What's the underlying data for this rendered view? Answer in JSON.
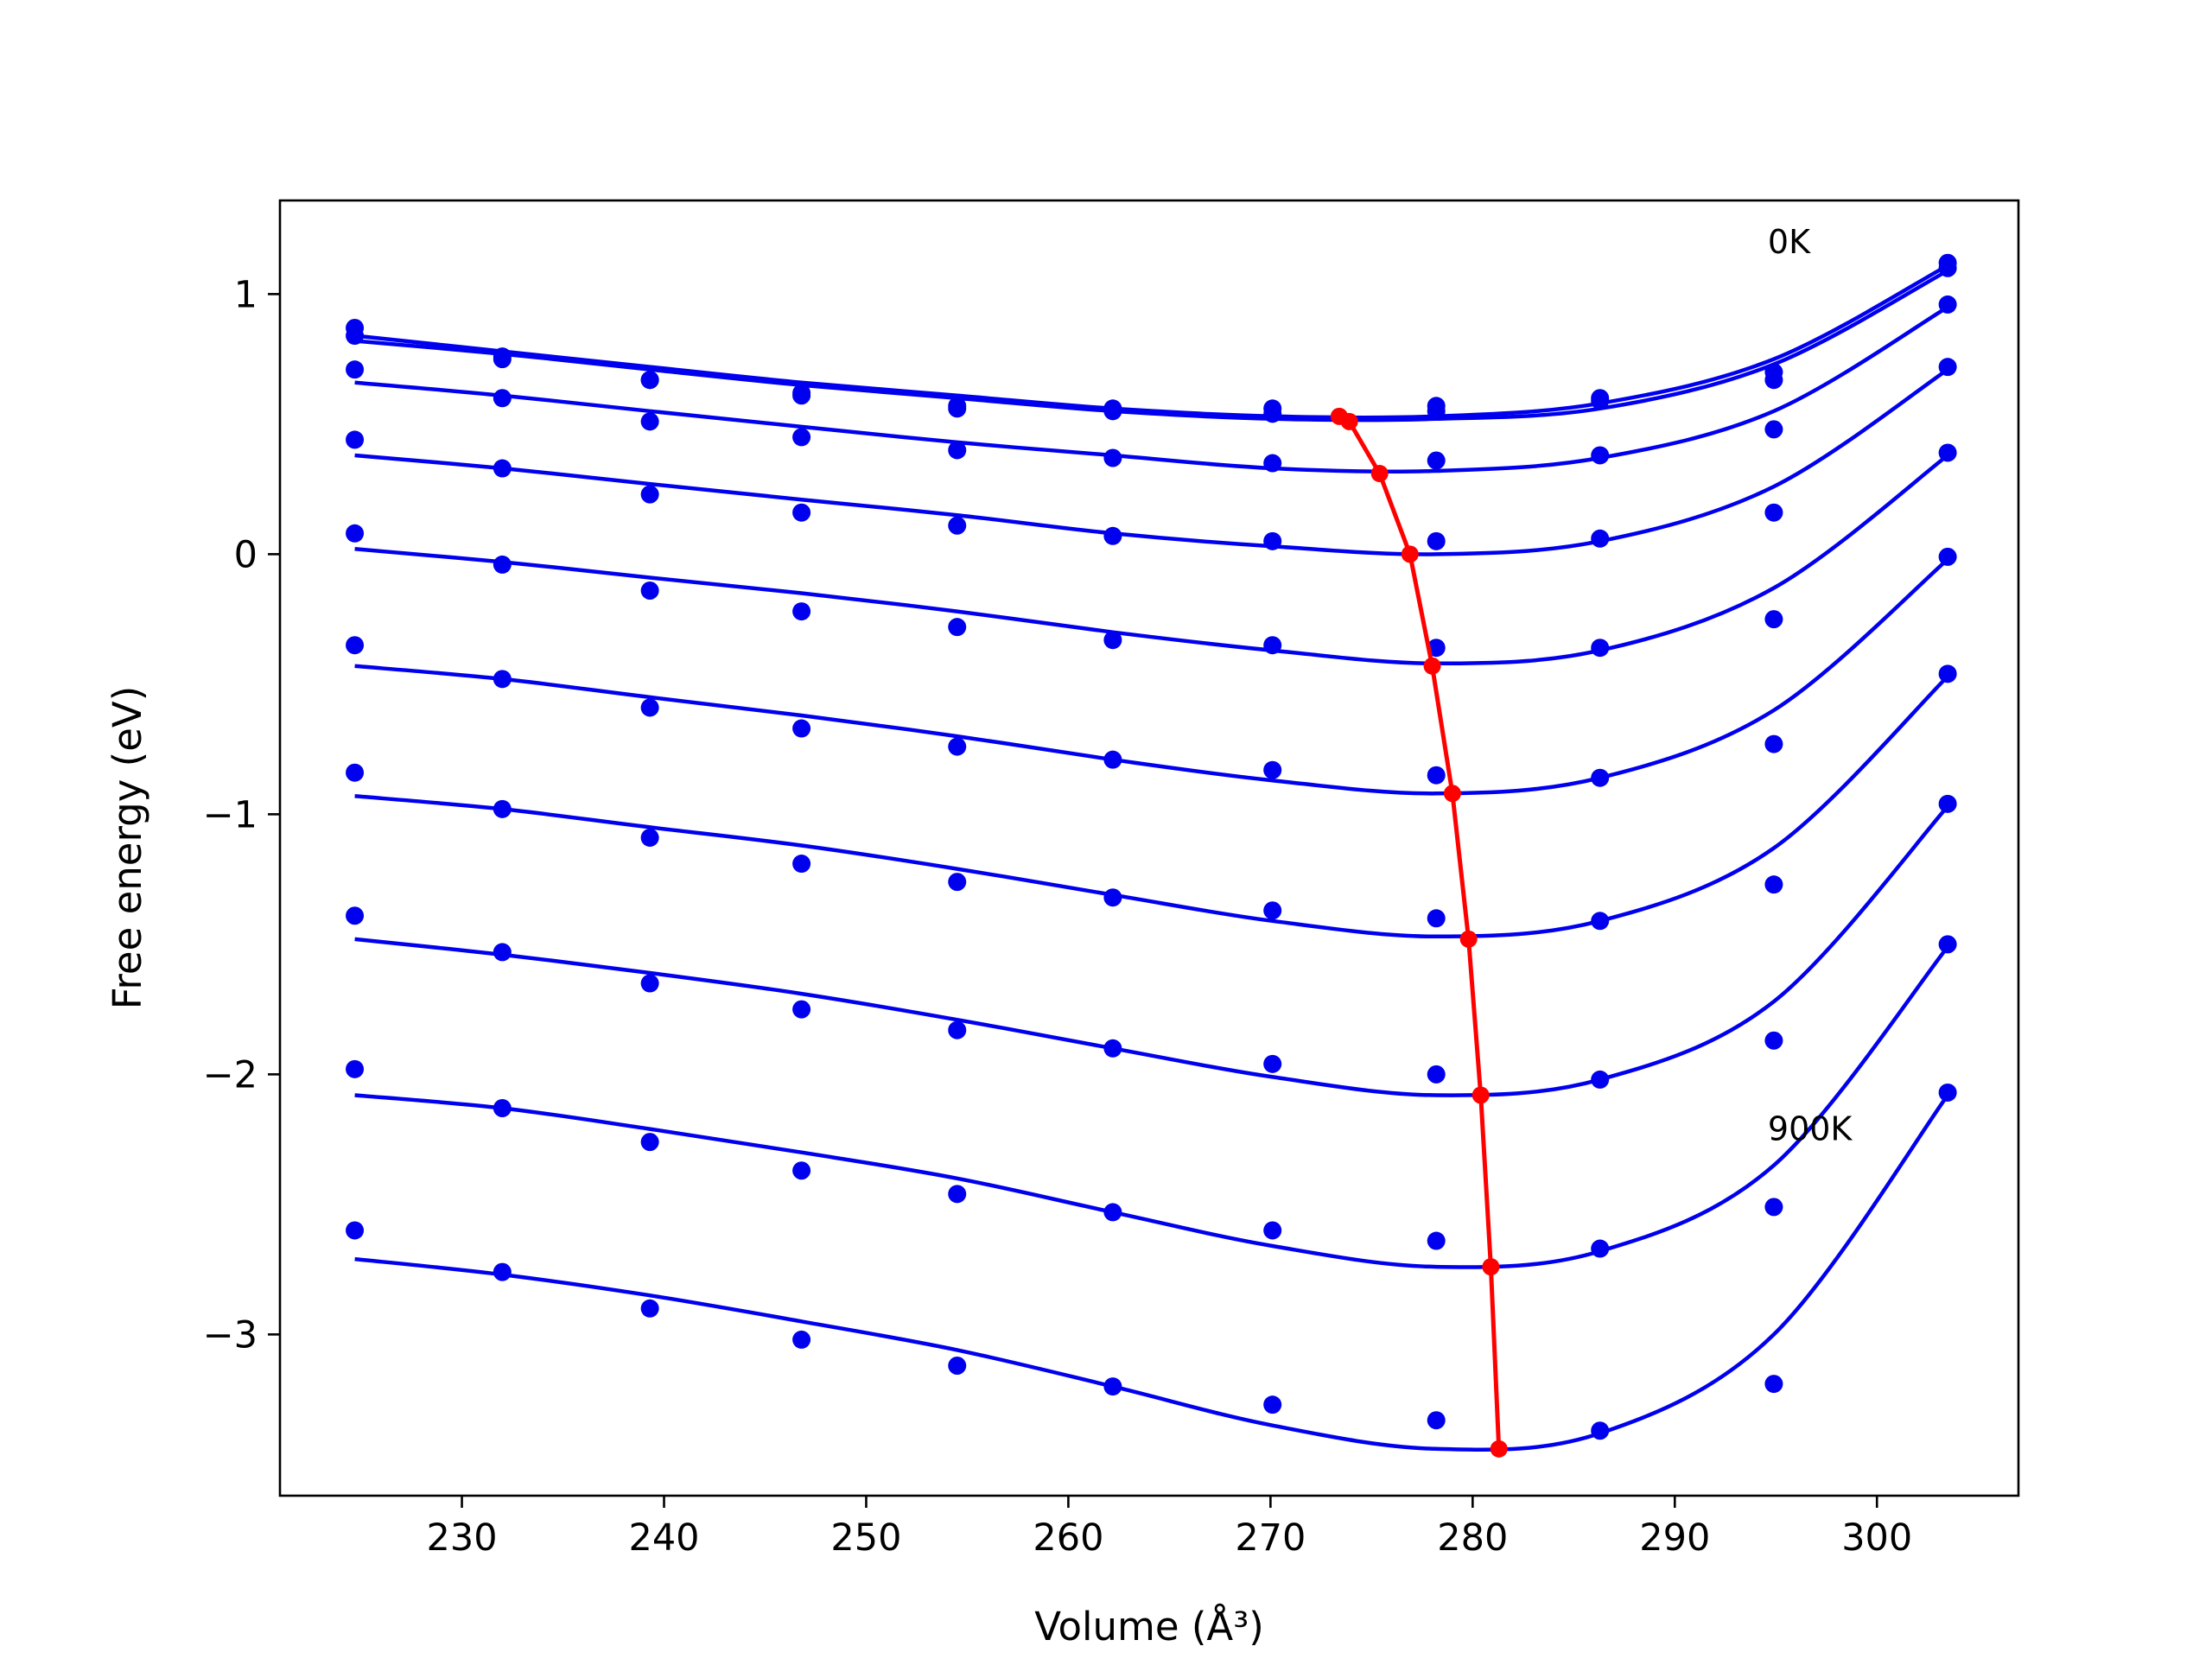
{
  "chart_data": {
    "type": "scatter",
    "title": "",
    "xlabel": "Volume (Å³)",
    "ylabel": "Free energy (eV)",
    "xlim": [
      221,
      307
    ],
    "ylim": [
      -3.62,
      1.36
    ],
    "xticks": [
      230,
      240,
      250,
      260,
      270,
      280,
      290,
      300
    ],
    "yticks": [
      1,
      0,
      -1,
      -2,
      -3
    ],
    "xtick_labels": [
      "230",
      "240",
      "250",
      "260",
      "270",
      "280",
      "290",
      "300"
    ],
    "ytick_labels": [
      "1",
      "0",
      "−1",
      "−2",
      "−3"
    ],
    "grid": false,
    "legend": "none",
    "annotations": [
      {
        "text": "0K",
        "x": 294.6,
        "y": 1.2
      },
      {
        "text": "900K",
        "x": 294.6,
        "y": -2.21
      }
    ],
    "colors": {
      "data": "#0000ee",
      "minima": "#ff0000",
      "axes": "#000000"
    },
    "volumes": [
      224.7,
      232.0,
      239.3,
      246.8,
      254.5,
      262.2,
      270.1,
      278.2,
      286.3,
      294.9,
      303.5
    ],
    "series": [
      {
        "values": [
          0.87,
          0.76,
          0.67,
          0.62,
          0.57,
          0.56,
          0.56,
          0.57,
          0.6,
          0.7,
          1.12
        ],
        "fit": [
          0.84,
          0.78,
          0.72,
          0.66,
          0.61,
          0.56,
          0.53,
          0.53,
          0.58,
          0.75,
          1.11
        ],
        "min": {
          "x": 273.4,
          "y": 0.53
        }
      },
      {
        "values": [
          0.84,
          0.75,
          0.67,
          0.61,
          0.56,
          0.55,
          0.54,
          0.55,
          0.59,
          0.67,
          1.1
        ],
        "fit": [
          0.82,
          0.77,
          0.71,
          0.65,
          0.6,
          0.55,
          0.52,
          0.52,
          0.56,
          0.73,
          1.09
        ],
        "min": {
          "x": 273.9,
          "y": 0.51
        }
      },
      {
        "values": [
          0.71,
          0.6,
          0.51,
          0.45,
          0.4,
          0.37,
          0.35,
          0.36,
          0.38,
          0.48,
          0.96
        ],
        "fit": [
          0.66,
          0.61,
          0.55,
          0.49,
          0.43,
          0.38,
          0.33,
          0.32,
          0.37,
          0.55,
          0.95
        ],
        "min": {
          "x": 275.4,
          "y": 0.31
        }
      },
      {
        "values": [
          0.44,
          0.33,
          0.23,
          0.16,
          0.11,
          0.07,
          0.05,
          0.05,
          0.06,
          0.16,
          0.72
        ],
        "fit": [
          0.38,
          0.33,
          0.27,
          0.21,
          0.15,
          0.08,
          0.03,
          0.0,
          0.05,
          0.26,
          0.71
        ],
        "min": {
          "x": 276.9,
          "y": 0.0
        }
      },
      {
        "values": [
          0.08,
          -0.04,
          -0.14,
          -0.22,
          -0.28,
          -0.33,
          -0.35,
          -0.36,
          -0.36,
          -0.25,
          0.39
        ],
        "fit": [
          0.02,
          -0.03,
          -0.09,
          -0.15,
          -0.22,
          -0.3,
          -0.37,
          -0.42,
          -0.37,
          -0.13,
          0.38
        ],
        "min": {
          "x": 278.0,
          "y": -0.43
        }
      },
      {
        "values": [
          -0.35,
          -0.48,
          -0.59,
          -0.67,
          -0.74,
          -0.79,
          -0.83,
          -0.85,
          -0.86,
          -0.73,
          -0.01
        ],
        "fit": [
          -0.43,
          -0.48,
          -0.55,
          -0.62,
          -0.7,
          -0.79,
          -0.87,
          -0.92,
          -0.86,
          -0.6,
          -0.02
        ],
        "min": {
          "x": 279.0,
          "y": -0.92
        }
      },
      {
        "values": [
          -0.84,
          -0.98,
          -1.09,
          -1.19,
          -1.26,
          -1.32,
          -1.37,
          -1.4,
          -1.41,
          -1.27,
          -0.46
        ],
        "fit": [
          -0.93,
          -0.98,
          -1.05,
          -1.12,
          -1.21,
          -1.31,
          -1.41,
          -1.47,
          -1.41,
          -1.13,
          -0.47
        ],
        "min": {
          "x": 279.8,
          "y": -1.48
        }
      },
      {
        "values": [
          -1.39,
          -1.53,
          -1.65,
          -1.75,
          -1.83,
          -1.9,
          -1.96,
          -2.0,
          -2.02,
          -1.87,
          -0.96
        ],
        "fit": [
          -1.48,
          -1.54,
          -1.61,
          -1.69,
          -1.79,
          -1.9,
          -2.01,
          -2.08,
          -2.02,
          -1.72,
          -0.97
        ],
        "min": {
          "x": 280.4,
          "y": -2.08
        }
      },
      {
        "values": [
          -1.98,
          -2.13,
          -2.26,
          -2.37,
          -2.46,
          -2.53,
          -2.6,
          -2.64,
          -2.67,
          -2.51,
          -1.5
        ],
        "fit": [
          -2.08,
          -2.13,
          -2.21,
          -2.3,
          -2.4,
          -2.53,
          -2.66,
          -2.74,
          -2.68,
          -2.35,
          -1.51
        ],
        "min": {
          "x": 280.9,
          "y": -2.74
        }
      },
      {
        "values": [
          -2.6,
          -2.76,
          -2.9,
          -3.02,
          -3.12,
          -3.2,
          -3.27,
          -3.33,
          -3.37,
          -3.19,
          -2.07
        ],
        "fit": [
          -2.71,
          -2.77,
          -2.85,
          -2.95,
          -3.06,
          -3.2,
          -3.35,
          -3.44,
          -3.38,
          -3.0,
          -2.08
        ],
        "min": {
          "x": 281.3,
          "y": -3.44
        }
      }
    ]
  }
}
